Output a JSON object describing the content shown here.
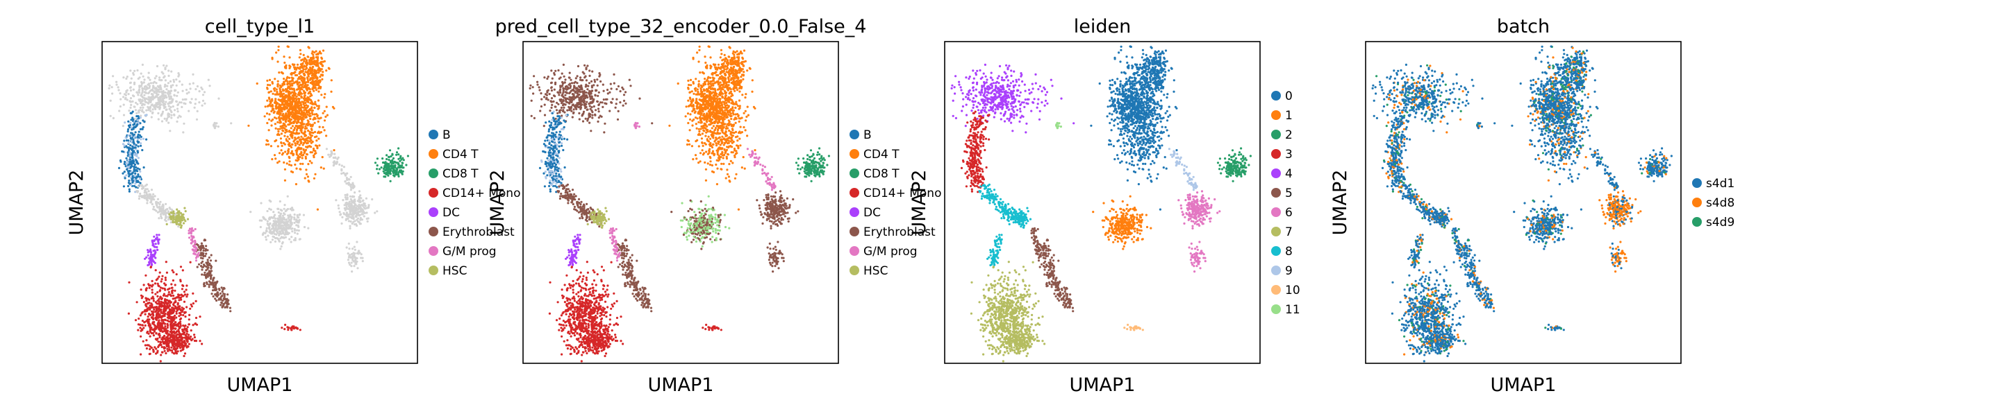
{
  "chart_data": [
    {
      "type": "scatter",
      "title": "cell_type_l1",
      "xlabel": "UMAP1",
      "ylabel": "UMAP2",
      "grid": false,
      "legend_placement": "right",
      "legend": [
        {
          "label": "B",
          "color": "#1f77b4"
        },
        {
          "label": "CD4 T",
          "color": "#ff7f0e"
        },
        {
          "label": "CD8 T",
          "color": "#279e68"
        },
        {
          "label": "CD14+ Mono",
          "color": "#d62728"
        },
        {
          "label": "DC",
          "color": "#aa40fc"
        },
        {
          "label": "Erythroblast",
          "color": "#8c564b"
        },
        {
          "label": "G/M prog",
          "color": "#e377c2"
        },
        {
          "label": "HSC",
          "color": "#b5bd61"
        }
      ]
    },
    {
      "type": "scatter",
      "title": "pred_cell_type_32_encoder_0.0_False_4",
      "xlabel": "UMAP1",
      "ylabel": "UMAP2",
      "grid": false,
      "legend_placement": "right",
      "legend": [
        {
          "label": "B",
          "color": "#1f77b4"
        },
        {
          "label": "CD4 T",
          "color": "#ff7f0e"
        },
        {
          "label": "CD8 T",
          "color": "#279e68"
        },
        {
          "label": "CD14+ Mono",
          "color": "#d62728"
        },
        {
          "label": "DC",
          "color": "#aa40fc"
        },
        {
          "label": "Erythroblast",
          "color": "#8c564b"
        },
        {
          "label": "G/M prog",
          "color": "#e377c2"
        },
        {
          "label": "HSC",
          "color": "#b5bd61"
        }
      ]
    },
    {
      "type": "scatter",
      "title": "leiden",
      "xlabel": "UMAP1",
      "ylabel": "UMAP2",
      "grid": false,
      "legend_placement": "right",
      "legend": [
        {
          "label": "0",
          "color": "#1f77b4"
        },
        {
          "label": "1",
          "color": "#ff7f0e"
        },
        {
          "label": "2",
          "color": "#279e68"
        },
        {
          "label": "3",
          "color": "#d62728"
        },
        {
          "label": "4",
          "color": "#aa40fc"
        },
        {
          "label": "5",
          "color": "#8c564b"
        },
        {
          "label": "6",
          "color": "#e377c2"
        },
        {
          "label": "7",
          "color": "#b5bd61"
        },
        {
          "label": "8",
          "color": "#17becf"
        },
        {
          "label": "9",
          "color": "#aec7e8"
        },
        {
          "label": "10",
          "color": "#ffbb78"
        },
        {
          "label": "11",
          "color": "#98df8a"
        }
      ]
    },
    {
      "type": "scatter",
      "title": "batch",
      "xlabel": "UMAP1",
      "ylabel": "UMAP2",
      "grid": false,
      "legend_placement": "right",
      "legend": [
        {
          "label": "s4d1",
          "color": "#1f77b4"
        },
        {
          "label": "s4d8",
          "color": "#ff7f0e"
        },
        {
          "label": "s4d9",
          "color": "#279e68"
        }
      ]
    }
  ]
}
